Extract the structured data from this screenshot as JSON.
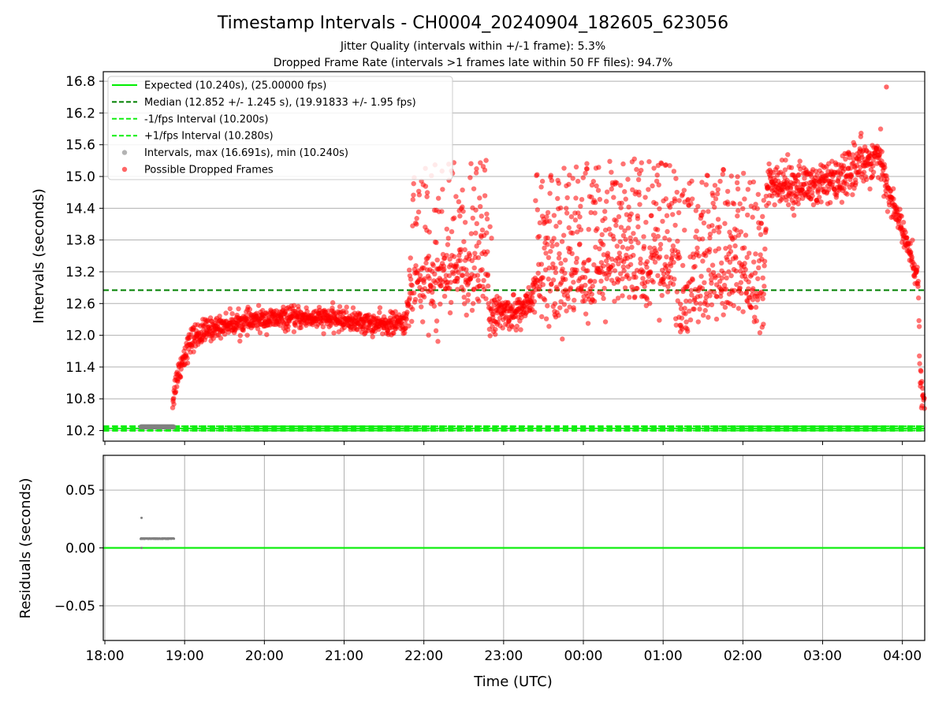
{
  "title": "Timestamp Intervals - CH0004_20240904_182605_623056",
  "subtitle1": "Jitter Quality (intervals within +/-1 frame): 5.3%",
  "subtitle2": "Dropped Frame Rate (intervals >1 frames late within 50 FF files): 94.7%",
  "colors": {
    "expected": "#00ee00",
    "median": "#008000",
    "fps_interval": "#11ee11",
    "normal_points": "#808080",
    "dropped_points": "#ff0000",
    "residual_line": "#11ee11",
    "grid": "#b0b0b0"
  },
  "chart_data": [
    {
      "type": "scatter",
      "panel": "top",
      "ylabel": "Intervals (seconds)",
      "xlabel": "",
      "x_unit": "hours since 18:00 UTC",
      "xlim": [
        -0.02,
        10.28
      ],
      "ylim": [
        10.0,
        16.98
      ],
      "yticks": [
        "10.2",
        "10.8",
        "11.4",
        "12.0",
        "12.6",
        "13.2",
        "13.8",
        "14.4",
        "15.0",
        "15.6",
        "16.2",
        "16.8"
      ],
      "grid": true,
      "legend_position": "upper left",
      "legend": [
        "Expected (10.240s), (25.00000 fps)",
        "Median (12.852 +/- 1.245 s), (19.91833 +/- 1.95 fps)",
        "-1/fps Interval (10.200s)",
        "+1/fps Interval (10.280s)",
        "Intervals, max (16.691s), min (10.240s)",
        "Possible Dropped Frames"
      ],
      "lines": [
        {
          "name": "Expected",
          "y": 10.24
        },
        {
          "name": "Median",
          "y": 12.852
        },
        {
          "name": "-1/fps Interval",
          "y": 10.2
        },
        {
          "name": "+1/fps Interval",
          "y": 10.28
        }
      ],
      "normal_intervals": {
        "x_range": [
          0.45,
          0.87
        ],
        "y": 10.27
      },
      "dropped_trend": [
        [
          0.85,
          10.75
        ],
        [
          0.9,
          11.2
        ],
        [
          1.0,
          11.65
        ],
        [
          1.1,
          11.95
        ],
        [
          1.3,
          12.1
        ],
        [
          1.5,
          12.2
        ],
        [
          2.0,
          12.3
        ],
        [
          2.5,
          12.33
        ],
        [
          3.0,
          12.3
        ],
        [
          3.3,
          12.22
        ],
        [
          3.5,
          12.2
        ],
        [
          3.78,
          12.25
        ],
        [
          3.82,
          12.85
        ],
        [
          4.0,
          13.0
        ],
        [
          4.4,
          13.15
        ],
        [
          4.8,
          13.2
        ],
        [
          4.82,
          12.4
        ],
        [
          5.2,
          12.45
        ],
        [
          5.35,
          12.6
        ],
        [
          5.4,
          12.9
        ],
        [
          6.0,
          13.0
        ],
        [
          6.2,
          13.2
        ],
        [
          7.0,
          13.1
        ],
        [
          7.15,
          13.2
        ],
        [
          7.18,
          12.35
        ],
        [
          7.25,
          12.6
        ],
        [
          7.5,
          12.9
        ],
        [
          8.0,
          13.1
        ],
        [
          8.2,
          12.6
        ],
        [
          8.25,
          12.3
        ],
        [
          8.3,
          14.8
        ],
        [
          9.0,
          14.85
        ],
        [
          9.2,
          14.9
        ],
        [
          9.4,
          15.2
        ],
        [
          9.7,
          15.4
        ],
        [
          9.8,
          14.8
        ],
        [
          10.0,
          14.0
        ],
        [
          10.2,
          13.0
        ],
        [
          10.22,
          11.2
        ],
        [
          10.28,
          10.7
        ]
      ],
      "dropped_max": {
        "x": 9.8,
        "y": 16.691
      },
      "dropped_count_approx": 2600
    },
    {
      "type": "scatter",
      "panel": "bottom",
      "ylabel": "Residuals (seconds)",
      "xlabel": "Time (UTC)",
      "xlim": [
        -0.02,
        10.28
      ],
      "ylim": [
        -0.08,
        0.08
      ],
      "xticks": [
        "18:00",
        "19:00",
        "20:00",
        "21:00",
        "22:00",
        "23:00",
        "00:00",
        "01:00",
        "02:00",
        "03:00",
        "04:00"
      ],
      "yticks": [
        "0.05",
        "0.00",
        "−0.05"
      ],
      "grid": true,
      "lines": [
        {
          "name": "zero",
          "y": 0.0
        }
      ],
      "residual_points": {
        "x_range": [
          0.45,
          0.87
        ],
        "y_typical": 0.008,
        "outliers": [
          [
            0.46,
            0.026
          ],
          [
            0.46,
            0.0
          ]
        ]
      }
    }
  ]
}
